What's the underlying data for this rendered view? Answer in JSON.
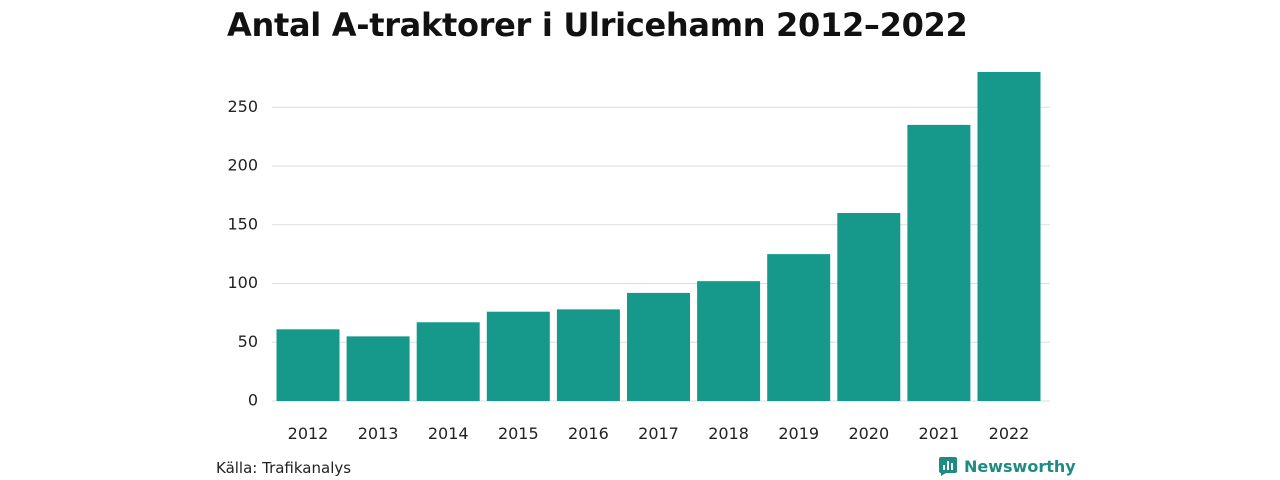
{
  "chart_data": {
    "type": "bar",
    "title": "Antal A-traktorer i Ulricehamn 2012–2022",
    "categories": [
      "2012",
      "2013",
      "2014",
      "2015",
      "2016",
      "2017",
      "2018",
      "2019",
      "2020",
      "2021",
      "2022"
    ],
    "values": [
      61,
      55,
      67,
      76,
      78,
      92,
      102,
      125,
      160,
      235,
      280
    ],
    "ylim": [
      0,
      280
    ],
    "yticks": [
      0,
      50,
      100,
      150,
      200,
      250
    ],
    "xlabel": "",
    "ylabel": "",
    "grid": true,
    "legend": "none",
    "bar_color": "#16998a"
  },
  "footer": {
    "source": "Källa: Trafikanalys",
    "brand": "Newsworthy",
    "brand_color": "#1e8c82"
  }
}
